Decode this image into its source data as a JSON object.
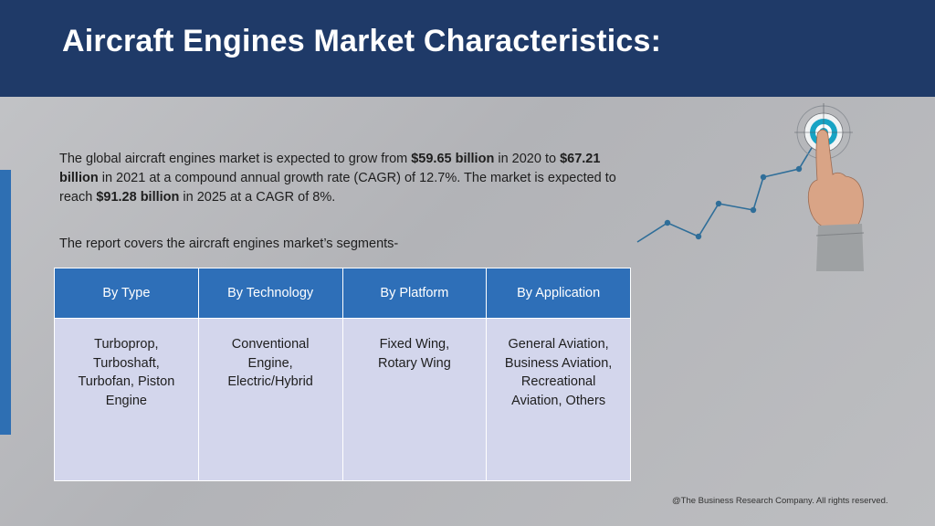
{
  "header": {
    "title": "Aircraft Engines Market Characteristics:"
  },
  "intro": {
    "p1": "The global aircraft engines market is expected to grow from ",
    "v1": "$59.65 billion",
    "p2": " in 2020 to ",
    "v2": "$67.21 billion",
    "p3": " in 2021 at a compound annual growth rate (CAGR) of 12.7%. The market is expected to reach ",
    "v3": "$91.28 billion",
    "p4": " in 2025 at a CAGR of 8%."
  },
  "segments_note": "The report covers the aircraft engines market’s segments-",
  "table": {
    "headers": [
      "By Type",
      "By Technology",
      "By Platform",
      "By Application"
    ],
    "rows": [
      [
        [
          "Turboprop,",
          "Turboshaft,",
          "Turbofan, Piston",
          "Engine"
        ],
        [
          "Conventional",
          "Engine,",
          "Electric/Hybrid"
        ],
        [
          "Fixed Wing,",
          "Rotary Wing"
        ],
        [
          "General Aviation,",
          "Business Aviation,",
          "Recreational",
          "Aviation, Others"
        ]
      ]
    ]
  },
  "icons": {
    "graphic": "growth-line-target-hand-icon"
  },
  "colors": {
    "header_bg": "#1f3a68",
    "accent_blue": "#2e6fb8",
    "cell_bg": "#d3d6ec",
    "target_teal": "#17a3c4"
  },
  "footer": "@The Business Research Company. All rights reserved."
}
